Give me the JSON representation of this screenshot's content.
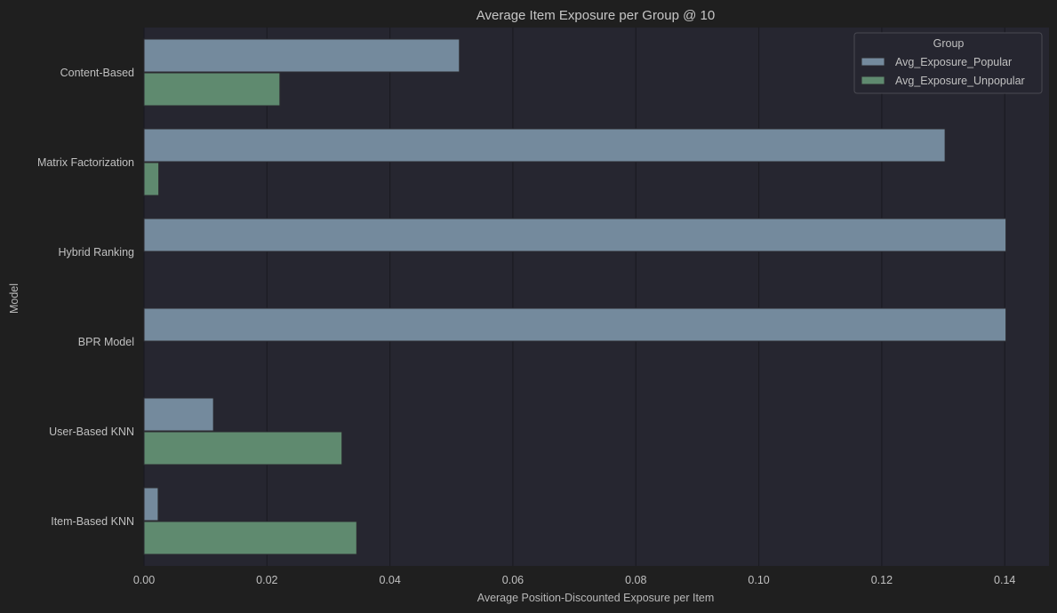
{
  "chart_data": {
    "type": "bar",
    "orientation": "horizontal",
    "title": "Average Item Exposure per Group @ 10",
    "xlabel": "Average Position-Discounted Exposure per Item",
    "ylabel": "Model",
    "categories": [
      "Content-Based",
      "Matrix Factorization",
      "Hybrid Ranking",
      "BPR Model",
      "User-Based KNN",
      "Item-Based KNN"
    ],
    "series": [
      {
        "name": "Avg_Exposure_Popular",
        "values": [
          0.0513,
          0.1303,
          0.1402,
          0.1402,
          0.0113,
          0.0023
        ]
      },
      {
        "name": "Avg_Exposure_Unpopular",
        "values": [
          0.0221,
          0.0024,
          0,
          0,
          0.0322,
          0.0346
        ]
      }
    ],
    "xlim": [
      0,
      0.1472
    ],
    "xticks": [
      "0.00",
      "0.02",
      "0.04",
      "0.06",
      "0.08",
      "0.10",
      "0.12",
      "0.14"
    ],
    "grid": true,
    "legend": {
      "title": "Group",
      "position": "top-right"
    },
    "colors": {
      "series": [
        "#748a9d",
        "#5f8a6f"
      ],
      "page_background": "#1f1f1f",
      "plot_background": "#262630",
      "text": "#c0c0c0",
      "grid": "#1b1b22"
    }
  }
}
